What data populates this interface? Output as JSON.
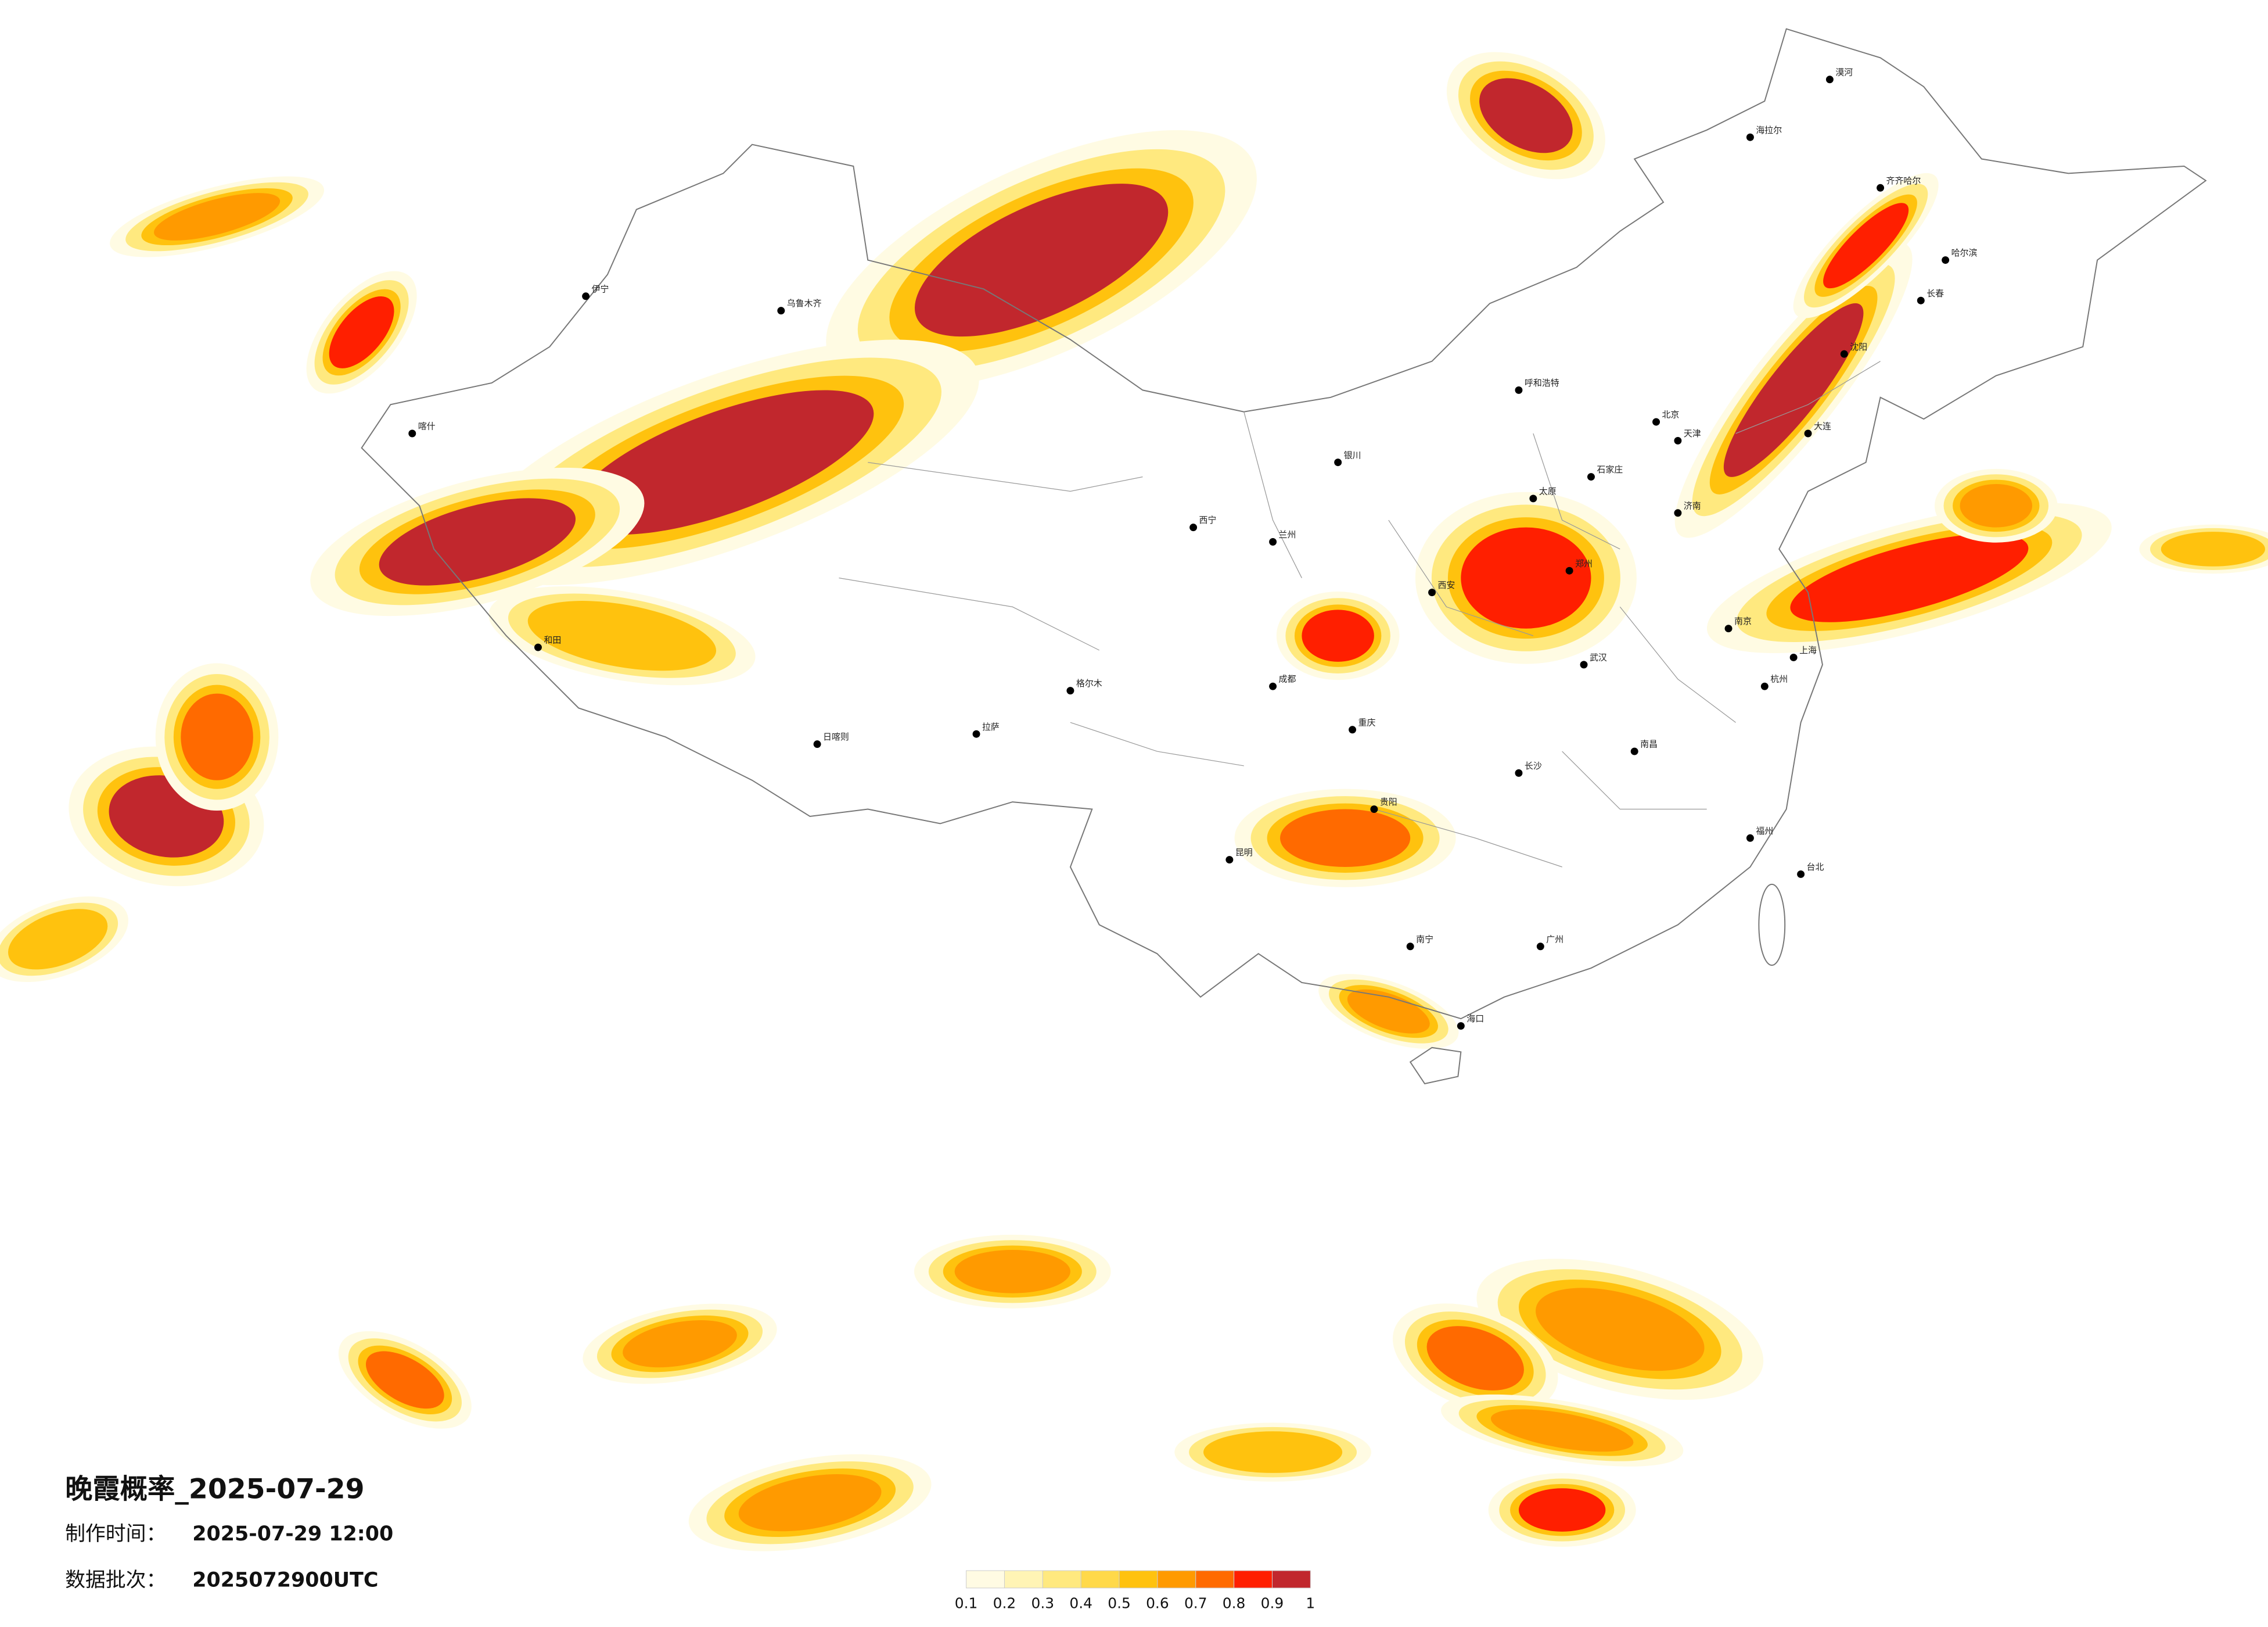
{
  "title": "晚霞概率_2025-07-29",
  "production_time": {
    "label": "制作时间：",
    "value": "2025-07-29 12:00"
  },
  "data_batch": {
    "label": "数据批次：",
    "value": "2025072900UTC"
  },
  "legend": {
    "ticks": [
      0.1,
      0.2,
      0.3,
      0.4,
      0.5,
      0.6,
      0.7,
      0.8,
      0.9,
      1
    ],
    "colors": [
      "#fffbe3",
      "#fff4b5",
      "#ffe97f",
      "#ffd94a",
      "#ffc20e",
      "#ff9a00",
      "#ff6a00",
      "#ff1f00",
      "#c1272d"
    ]
  },
  "cities": [
    "漠河",
    "海拉尔",
    "齐齐哈尔",
    "哈尔滨",
    "长春",
    "沈阳",
    "大连",
    "北京",
    "天津",
    "石家庄",
    "太原",
    "呼和浩特",
    "济南",
    "郑州",
    "西安",
    "兰州",
    "西宁",
    "银川",
    "乌鲁木齐",
    "伊宁",
    "喀什",
    "和田",
    "拉萨",
    "日喀则",
    "格尔木",
    "成都",
    "重庆",
    "昆明",
    "贵阳",
    "南宁",
    "广州",
    "海口",
    "长沙",
    "武汉",
    "南昌",
    "福州",
    "杭州",
    "南京",
    "上海",
    "台北"
  ]
}
